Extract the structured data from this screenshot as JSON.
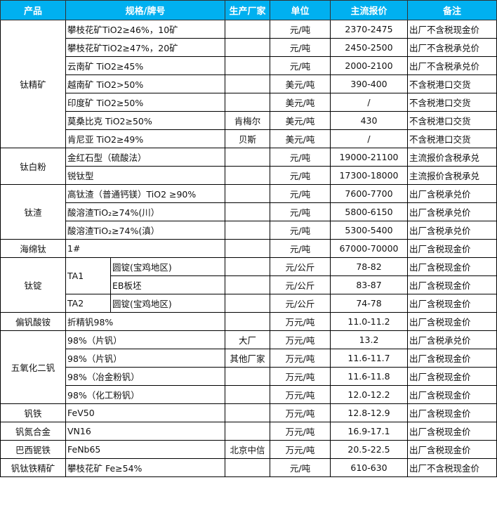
{
  "header": {
    "product": "产品",
    "spec": "规格/牌号",
    "maker": "生产厂家",
    "unit": "单位",
    "price": "主流报价",
    "note": "备注"
  },
  "colors": {
    "header_bg": "#00b0f0",
    "header_text": "#ffffff"
  },
  "groups": {
    "g1": "钛精矿",
    "g2": "钛白粉",
    "g3": "钛渣",
    "g4": "海绵钛",
    "g5": "钛锭",
    "g6": "偏钒酸铵",
    "g7": "五氧化二钒",
    "g8": "钒铁",
    "g9": "钒氮合金",
    "g10": "巴西铌铁",
    "g11": "钒钛铁精矿"
  },
  "rows": [
    {
      "spec": "攀枝花矿TiO2≥46%，10矿",
      "maker": "",
      "unit": "元/吨",
      "price": "2370-2475",
      "note": "出厂不含税现金价"
    },
    {
      "spec": "攀枝花矿TiO2≥47%，20矿",
      "maker": "",
      "unit": "元/吨",
      "price": "2450-2500",
      "note": "出厂不含税承兑价"
    },
    {
      "spec": "云南矿 TiO2≥45%",
      "maker": "",
      "unit": "元/吨",
      "price": "2000-2100",
      "note": "出厂不含税承兑价"
    },
    {
      "spec": "越南矿 TiO2>50%",
      "maker": "",
      "unit": "美元/吨",
      "price": "390-400",
      "note": "不含税港口交货"
    },
    {
      "spec": "印度矿 TiO2≥50%",
      "maker": "",
      "unit": "美元/吨",
      "price": "/",
      "note": "不含税港口交货"
    },
    {
      "spec": "莫桑比克 TiO2≥50%",
      "maker": "肯梅尔",
      "unit": "美元/吨",
      "price": "430",
      "note": "不含税港口交货"
    },
    {
      "spec": "肯尼亚 TiO2≥49%",
      "maker": "贝斯",
      "unit": "美元/吨",
      "price": "/",
      "note": "不含税港口交货"
    },
    {
      "spec": "金红石型（硫酸法）",
      "maker": "",
      "unit": "元/吨",
      "price": "19000-21100",
      "note": "主流报价含税承兑"
    },
    {
      "spec": "锐钛型",
      "maker": "",
      "unit": "元/吨",
      "price": "17300-18000",
      "note": "主流报价含税承兑"
    },
    {
      "spec": "高钛渣（普通钙镁）TiO2 ≥90%",
      "maker": "",
      "unit": "元/吨",
      "price": "7600-7700",
      "note": "出厂含税承兑价"
    },
    {
      "spec": "酸溶渣TiO₂≥74%(川）",
      "maker": "",
      "unit": "元/吨",
      "price": "5800-6150",
      "note": "出厂含税承兑价"
    },
    {
      "spec": "酸溶渣TiO₂≥74%(滇）",
      "maker": "",
      "unit": "元/吨",
      "price": "5300-5400",
      "note": "出厂含税承兑价"
    },
    {
      "spec": "1#",
      "maker": "",
      "unit": "元/吨",
      "price": "67000-70000",
      "note": "出厂含税现金价"
    },
    {
      "grade": "TA1",
      "spec": "圆锭(宝鸡地区)",
      "maker": "",
      "unit": "元/公斤",
      "price": "78-82",
      "note": "出厂含税现金价"
    },
    {
      "spec": "EB板坯",
      "maker": "",
      "unit": "元/公斤",
      "price": "83-87",
      "note": "出厂含税现金价"
    },
    {
      "grade": "TA2",
      "spec": "圆锭(宝鸡地区)",
      "maker": "",
      "unit": "元/公斤",
      "price": "74-78",
      "note": "出厂含税现金价"
    },
    {
      "spec": "折精钒98%",
      "maker": "",
      "unit": "万元/吨",
      "price": "11.0-11.2",
      "note": "出厂含税现金价"
    },
    {
      "spec": "98%（片钒）",
      "maker": "大厂",
      "unit": "万元/吨",
      "price": "13.2",
      "note": "出厂含税承兑价"
    },
    {
      "spec": "98%（片钒）",
      "maker": "其他厂家",
      "unit": "万元/吨",
      "price": "11.6-11.7",
      "note": "出厂含税现金价"
    },
    {
      "spec": "98%（冶金粉钒）",
      "maker": "",
      "unit": "万元/吨",
      "price": "11.6-11.8",
      "note": "出厂含税现金价"
    },
    {
      "spec": "98%（化工粉钒）",
      "maker": "",
      "unit": "万元/吨",
      "price": "12.0-12.2",
      "note": "出厂含税现金价"
    },
    {
      "spec": "FeV50",
      "maker": "",
      "unit": "万元/吨",
      "price": "12.8-12.9",
      "note": "出厂含税现金价"
    },
    {
      "spec": "VN16",
      "maker": "",
      "unit": "万元/吨",
      "price": "16.9-17.1",
      "note": "出厂含税现金价"
    },
    {
      "spec": "FeNb65",
      "maker": "北京中信",
      "unit": "万元/吨",
      "price": "20.5-22.5",
      "note": "出厂含税现金价"
    },
    {
      "spec": "攀枝花矿 Fe≥54%",
      "maker": "",
      "unit": "元/吨",
      "price": "610-630",
      "note": "出厂不含税现金价"
    }
  ]
}
